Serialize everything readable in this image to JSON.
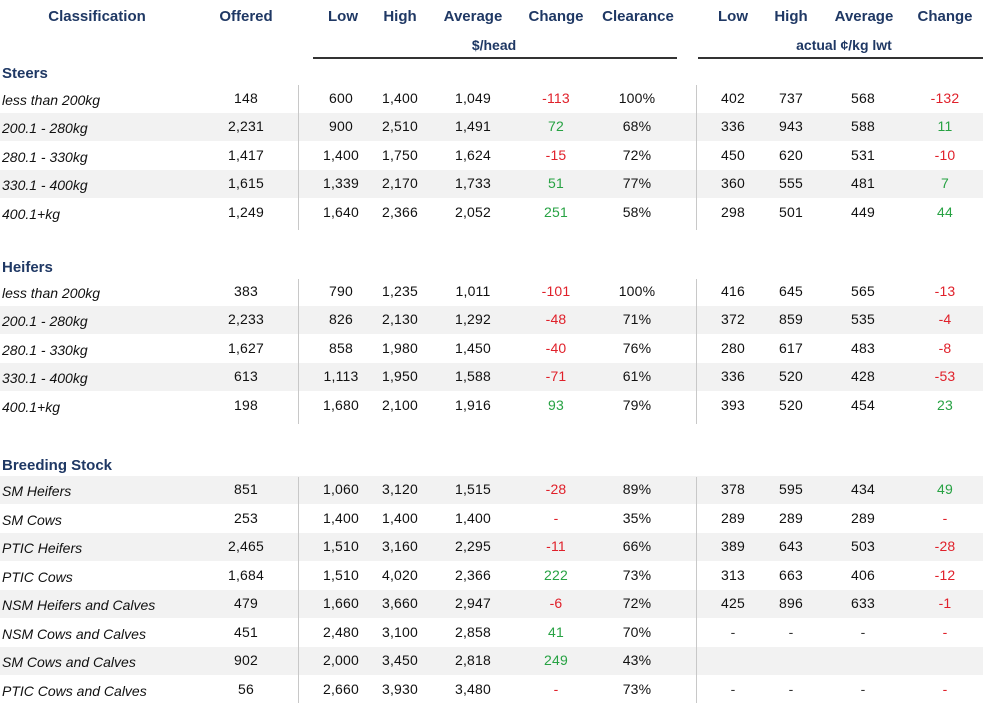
{
  "header": {
    "classification": "Classification",
    "offered": "Offered",
    "low": "Low",
    "high": "High",
    "average": "Average",
    "change": "Change",
    "clearance": "Clearance",
    "low2": "Low",
    "high2": "High",
    "average2": "Average",
    "change2": "Change",
    "unit_head": "$/head",
    "unit_kg": "actual ¢/kg lwt"
  },
  "sections": {
    "steers": "Steers",
    "heifers": "Heifers",
    "breeding": "Breeding Stock"
  },
  "rows": [
    {
      "label": "less than 200kg",
      "offered": "148",
      "low": "600",
      "high": "1,400",
      "avg": "1,049",
      "chg": "-113",
      "clear": "100%",
      "klow": "402",
      "khigh": "737",
      "kavg": "568",
      "kchg": "-132"
    },
    {
      "label": "200.1 - 280kg",
      "offered": "2,231",
      "low": "900",
      "high": "2,510",
      "avg": "1,491",
      "chg": "72",
      "clear": "68%",
      "klow": "336",
      "khigh": "943",
      "kavg": "588",
      "kchg": "11"
    },
    {
      "label": "280.1 - 330kg",
      "offered": "1,417",
      "low": "1,400",
      "high": "1,750",
      "avg": "1,624",
      "chg": "-15",
      "clear": "72%",
      "klow": "450",
      "khigh": "620",
      "kavg": "531",
      "kchg": "-10"
    },
    {
      "label": "330.1 - 400kg",
      "offered": "1,615",
      "low": "1,339",
      "high": "2,170",
      "avg": "1,733",
      "chg": "51",
      "clear": "77%",
      "klow": "360",
      "khigh": "555",
      "kavg": "481",
      "kchg": "7"
    },
    {
      "label": "400.1+kg",
      "offered": "1,249",
      "low": "1,640",
      "high": "2,366",
      "avg": "2,052",
      "chg": "251",
      "clear": "58%",
      "klow": "298",
      "khigh": "501",
      "kavg": "449",
      "kchg": "44"
    },
    {
      "label": "less than 200kg",
      "offered": "383",
      "low": "790",
      "high": "1,235",
      "avg": "1,011",
      "chg": "-101",
      "clear": "100%",
      "klow": "416",
      "khigh": "645",
      "kavg": "565",
      "kchg": "-13"
    },
    {
      "label": "200.1 - 280kg",
      "offered": "2,233",
      "low": "826",
      "high": "2,130",
      "avg": "1,292",
      "chg": "-48",
      "clear": "71%",
      "klow": "372",
      "khigh": "859",
      "kavg": "535",
      "kchg": "-4"
    },
    {
      "label": "280.1 - 330kg",
      "offered": "1,627",
      "low": "858",
      "high": "1,980",
      "avg": "1,450",
      "chg": "-40",
      "clear": "76%",
      "klow": "280",
      "khigh": "617",
      "kavg": "483",
      "kchg": "-8"
    },
    {
      "label": "330.1 - 400kg",
      "offered": "613",
      "low": "1,113",
      "high": "1,950",
      "avg": "1,588",
      "chg": "-71",
      "clear": "61%",
      "klow": "336",
      "khigh": "520",
      "kavg": "428",
      "kchg": "-53"
    },
    {
      "label": "400.1+kg",
      "offered": "198",
      "low": "1,680",
      "high": "2,100",
      "avg": "1,916",
      "chg": "93",
      "clear": "79%",
      "klow": "393",
      "khigh": "520",
      "kavg": "454",
      "kchg": "23"
    },
    {
      "label": "SM Heifers",
      "offered": "851",
      "low": "1,060",
      "high": "3,120",
      "avg": "1,515",
      "chg": "-28",
      "clear": "89%",
      "klow": "378",
      "khigh": "595",
      "kavg": "434",
      "kchg": "49"
    },
    {
      "label": "SM Cows",
      "offered": "253",
      "low": "1,400",
      "high": "1,400",
      "avg": "1,400",
      "chg": "-",
      "clear": "35%",
      "klow": "289",
      "khigh": "289",
      "kavg": "289",
      "kchg": "-"
    },
    {
      "label": "PTIC Heifers",
      "offered": "2,465",
      "low": "1,510",
      "high": "3,160",
      "avg": "2,295",
      "chg": "-11",
      "clear": "66%",
      "klow": "389",
      "khigh": "643",
      "kavg": "503",
      "kchg": "-28"
    },
    {
      "label": "PTIC Cows",
      "offered": "1,684",
      "low": "1,510",
      "high": "4,020",
      "avg": "2,366",
      "chg": "222",
      "clear": "73%",
      "klow": "313",
      "khigh": "663",
      "kavg": "406",
      "kchg": "-12"
    },
    {
      "label": "NSM Heifers and Calves",
      "offered": "479",
      "low": "1,660",
      "high": "3,660",
      "avg": "2,947",
      "chg": "-6",
      "clear": "72%",
      "klow": "425",
      "khigh": "896",
      "kavg": "633",
      "kchg": "-1"
    },
    {
      "label": "NSM Cows and Calves",
      "offered": "451",
      "low": "2,480",
      "high": "3,100",
      "avg": "2,858",
      "chg": "41",
      "clear": "70%",
      "klow": "-",
      "khigh": "-",
      "kavg": "-",
      "kchg": "-"
    },
    {
      "label": "SM Cows and Calves",
      "offered": "902",
      "low": "2,000",
      "high": "3,450",
      "avg": "2,818",
      "chg": "249",
      "clear": "43%",
      "klow": "",
      "khigh": "",
      "kavg": "",
      "kchg": ""
    },
    {
      "label": "PTIC Cows and Calves",
      "offered": "56",
      "low": "2,660",
      "high": "3,930",
      "avg": "3,480",
      "chg": "-",
      "clear": "73%",
      "klow": "-",
      "khigh": "-",
      "kavg": "-",
      "kchg": "-"
    }
  ]
}
